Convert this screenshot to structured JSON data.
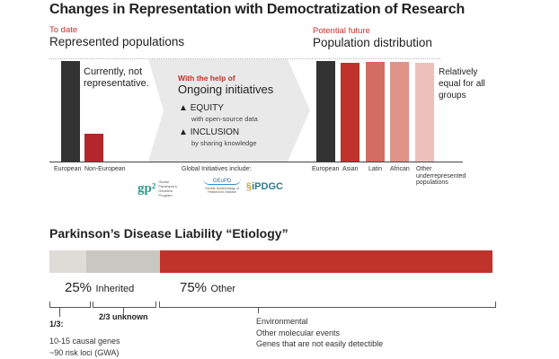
{
  "title": "Changes in Representation with Democtratization of Research",
  "left": {
    "kicker": "To date",
    "heading": "Represented populations",
    "note": "Currently, not representative.",
    "bars": [
      {
        "label": "European",
        "value": 1.0,
        "color": "#333333"
      },
      {
        "label": "Non-European",
        "value": 0.28,
        "color": "#b3262b"
      }
    ]
  },
  "middle": {
    "kicker": "With the help of",
    "heading": "Ongoing initiatives",
    "items": [
      {
        "title": "EQUITY",
        "detail": "with open-source data"
      },
      {
        "title": "INCLUSION",
        "detail": "by sharing knowledge"
      }
    ],
    "logos_caption": "Global Initiatives include:",
    "logos": [
      {
        "mark": "gp²",
        "text": "Global Parkinson's Genetics Program"
      },
      {
        "mark": "GEoPD",
        "text": "Genetic Epidemiology of Parkinson's Disease"
      },
      {
        "mark": "iPDGC"
      }
    ]
  },
  "right": {
    "kicker": "Potential future",
    "heading": "Population distribution",
    "note": "Relatively equal for all groups",
    "bars": [
      {
        "label": "European",
        "value": 1.0,
        "color": "#333333"
      },
      {
        "label": "Asian",
        "value": 0.98,
        "color": "#c0332b"
      },
      {
        "label": "Latin",
        "value": 0.99,
        "color": "#d36d62"
      },
      {
        "label": "African",
        "value": 0.99,
        "color": "#df9389"
      },
      {
        "label": "Other underrepresented populations",
        "value": 0.98,
        "color": "#ecc1bb"
      }
    ]
  },
  "etiology": {
    "title": "Parkinson’s Disease Liability “Etiology”",
    "segments": [
      {
        "share": 8.3,
        "color": "#dddcd7"
      },
      {
        "share": 16.7,
        "color": "#c8c7c2"
      },
      {
        "share": 75,
        "color": "#c0332b"
      }
    ],
    "inherited": {
      "pct": "25%",
      "label": "Inherited"
    },
    "other": {
      "pct": "75%",
      "label": "Other"
    },
    "known": {
      "label": "1/3:",
      "lines": [
        "10-15 causal genes",
        "~90 risk loci (GWA)"
      ]
    },
    "unknown": "2/3 unknown",
    "other_lines": [
      "Environmental",
      "Other molecular events",
      "Genes that are not easily detectible"
    ]
  }
}
